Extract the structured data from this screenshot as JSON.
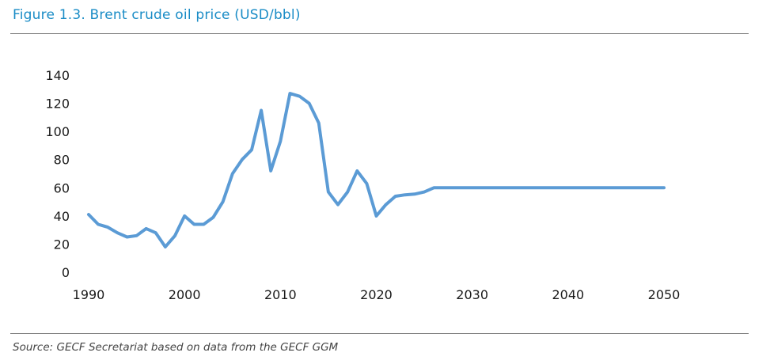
{
  "figure": {
    "title": "Figure 1.3. Brent crude oil price (USD/bbl)",
    "source": "Source: GECF Secretariat based on data from the GECF GGM"
  },
  "chart_data": {
    "type": "line",
    "title": "",
    "xlabel": "",
    "ylabel": "",
    "xlim": [
      1990,
      2050
    ],
    "ylim": [
      0,
      140
    ],
    "xticks": [
      1990,
      2000,
      2010,
      2020,
      2030,
      2040,
      2050
    ],
    "yticks": [
      0,
      20,
      40,
      60,
      80,
      100,
      120,
      140
    ],
    "grid": false,
    "legend": "none",
    "line_color": "#5b9bd5",
    "series": [
      {
        "x": [
          1990,
          1991,
          1992,
          1993,
          1994,
          1995,
          1996,
          1997,
          1998,
          1999,
          2000,
          2001,
          2002,
          2003,
          2004,
          2005,
          2006,
          2007,
          2008,
          2009,
          2010,
          2011,
          2012,
          2013,
          2014,
          2015,
          2016,
          2017,
          2018,
          2019,
          2020,
          2021,
          2022,
          2023,
          2024,
          2025,
          2026,
          2027,
          2028,
          2029,
          2030,
          2031,
          2032,
          2033,
          2034,
          2035,
          2036,
          2037,
          2038,
          2039,
          2040,
          2041,
          2042,
          2043,
          2044,
          2045,
          2046,
          2047,
          2048,
          2049,
          2050
        ],
        "values": [
          41,
          34,
          32,
          28,
          25,
          26,
          31,
          28,
          18,
          26,
          40,
          34,
          34,
          39,
          50,
          70,
          80,
          87,
          115,
          72,
          93,
          127,
          125,
          120,
          106,
          57,
          48,
          57,
          72,
          63,
          40,
          48,
          54,
          55,
          55.5,
          57,
          60,
          60,
          60,
          60,
          60,
          60,
          60,
          60,
          60,
          60,
          60,
          60,
          60,
          60,
          60,
          60,
          60,
          60,
          60,
          60,
          60,
          60,
          60,
          60,
          60
        ]
      }
    ]
  }
}
